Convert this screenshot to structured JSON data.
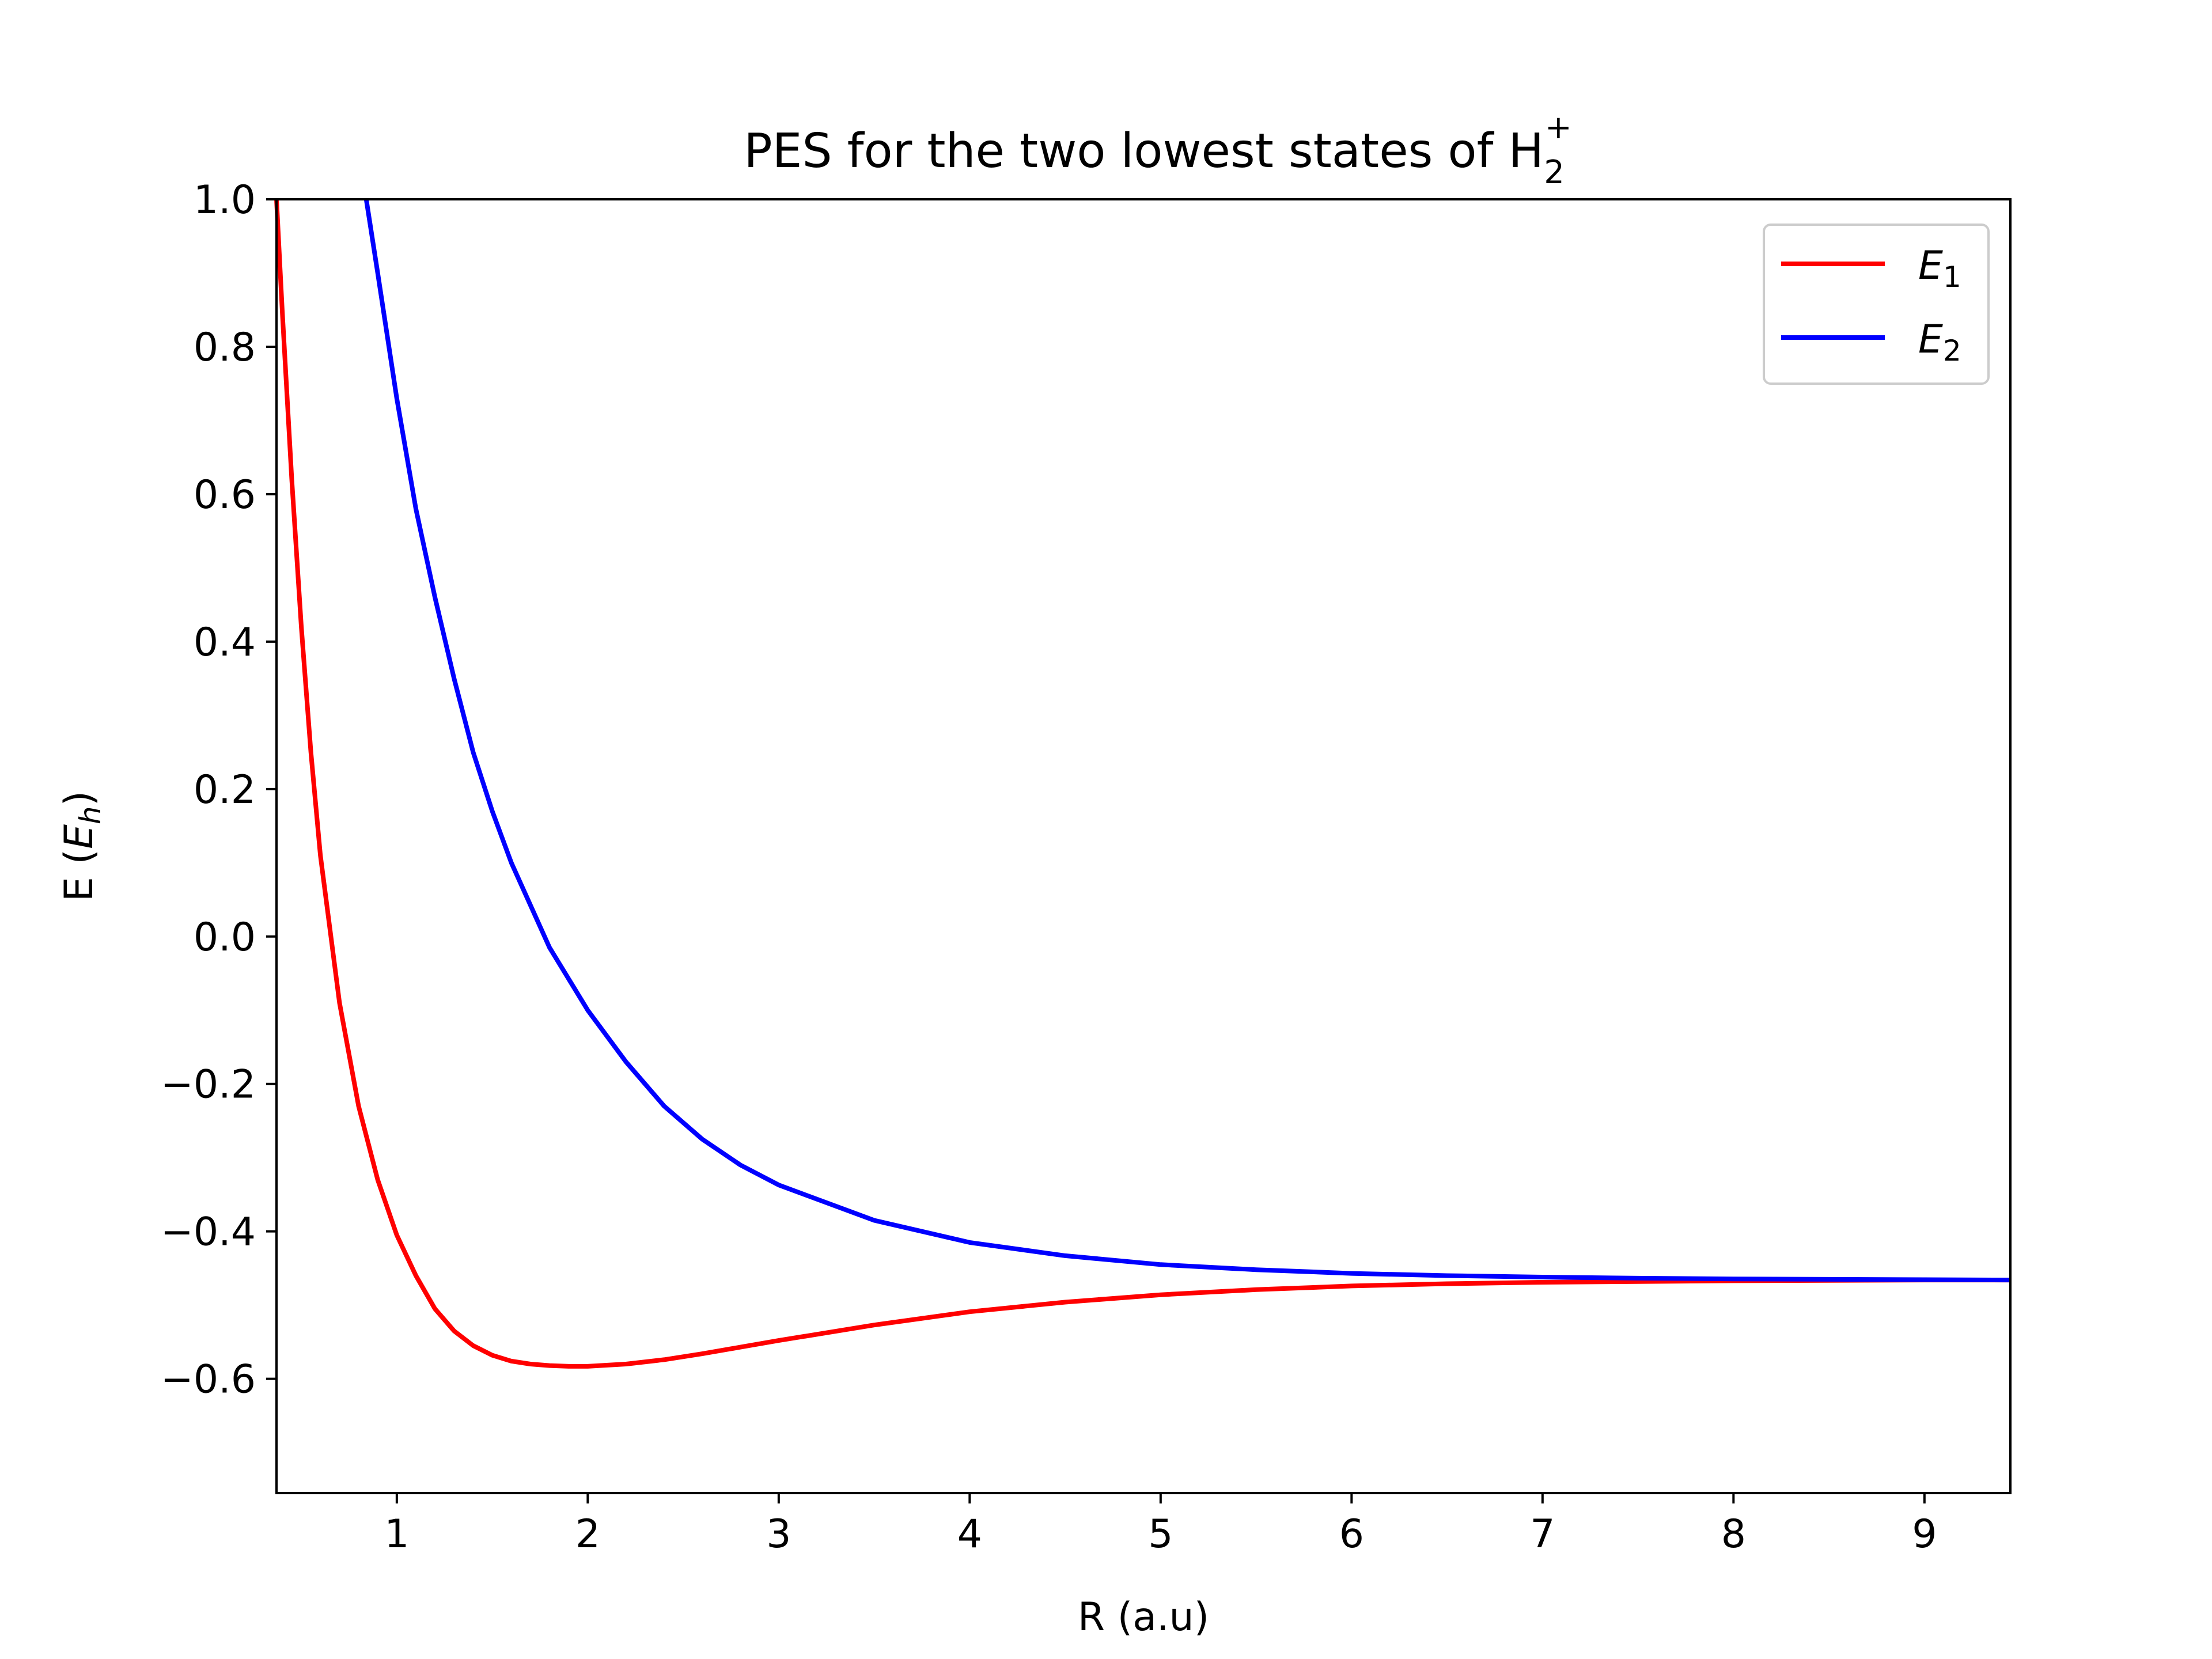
{
  "chart_data": {
    "type": "line",
    "title": "PES for the two lowest states of H",
    "title_sub": "2",
    "title_sup": "+",
    "xlabel": "R (a.u)",
    "ylabel_prefix": "E (",
    "ylabel_symbol": "E",
    "ylabel_sub": "h",
    "ylabel_suffix": ")",
    "xlim": [
      0.37,
      9.45
    ],
    "ylim": [
      -0.755,
      1.0
    ],
    "xticks": [
      1,
      2,
      3,
      4,
      5,
      6,
      7,
      8,
      9
    ],
    "xtick_labels": [
      "1",
      "2",
      "3",
      "4",
      "5",
      "6",
      "7",
      "8",
      "9"
    ],
    "yticks": [
      1.0,
      0.8,
      0.6,
      0.4,
      0.2,
      0.0,
      -0.2,
      -0.4,
      -0.6
    ],
    "ytick_labels": [
      "1.0",
      "0.8",
      "0.6",
      "0.4",
      "0.2",
      "0.0",
      "−0.2",
      "−0.4",
      "−0.6"
    ],
    "grid": false,
    "legend_position": "top-right",
    "series": [
      {
        "name": "E",
        "name_sub": "1",
        "color": "#ff0000",
        "x": [
          0.37,
          0.4,
          0.45,
          0.5,
          0.55,
          0.6,
          0.7,
          0.8,
          0.9,
          1.0,
          1.1,
          1.2,
          1.3,
          1.4,
          1.5,
          1.6,
          1.7,
          1.8,
          1.9,
          2.0,
          2.2,
          2.4,
          2.6,
          2.8,
          3.0,
          3.5,
          4.0,
          4.5,
          5.0,
          5.5,
          6.0,
          6.5,
          7.0,
          7.5,
          8.0,
          8.5,
          9.0,
          9.45
        ],
        "y": [
          1.0,
          0.85,
          0.62,
          0.42,
          0.25,
          0.11,
          -0.09,
          -0.23,
          -0.33,
          -0.405,
          -0.46,
          -0.505,
          -0.535,
          -0.555,
          -0.568,
          -0.576,
          -0.58,
          -0.582,
          -0.583,
          -0.583,
          -0.58,
          -0.574,
          -0.566,
          -0.557,
          -0.548,
          -0.527,
          -0.509,
          -0.496,
          -0.486,
          -0.479,
          -0.474,
          -0.471,
          -0.469,
          -0.468,
          -0.467,
          -0.4665,
          -0.466,
          -0.466
        ]
      },
      {
        "name": "E",
        "name_sub": "2",
        "color": "#0000ff",
        "x": [
          0.84,
          0.9,
          1.0,
          1.1,
          1.2,
          1.3,
          1.4,
          1.5,
          1.6,
          1.8,
          2.0,
          2.2,
          2.4,
          2.6,
          2.8,
          3.0,
          3.5,
          4.0,
          4.5,
          5.0,
          5.5,
          6.0,
          6.5,
          7.0,
          7.5,
          8.0,
          8.5,
          9.0,
          9.45
        ],
        "y": [
          1.0,
          0.9,
          0.73,
          0.58,
          0.46,
          0.35,
          0.25,
          0.17,
          0.1,
          -0.015,
          -0.1,
          -0.17,
          -0.23,
          -0.275,
          -0.31,
          -0.337,
          -0.385,
          -0.415,
          -0.433,
          -0.445,
          -0.452,
          -0.457,
          -0.46,
          -0.462,
          -0.4635,
          -0.4645,
          -0.465,
          -0.4655,
          -0.466
        ]
      }
    ]
  }
}
